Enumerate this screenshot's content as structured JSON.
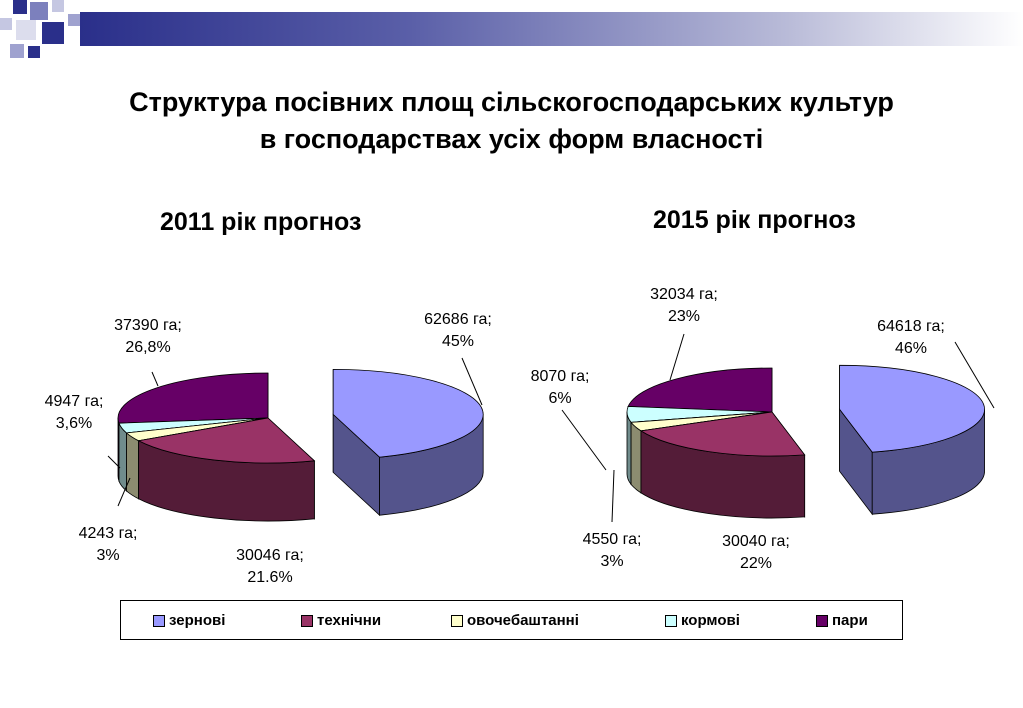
{
  "slide": {
    "title_line1": "Структура посівних площ сільскогосподарських культур",
    "title_line2": "в господарствах усіх форм власності"
  },
  "colors": {
    "зернові": "#9999ff",
    "технічни": "#993366",
    "овочебаштанні": "#ffffcc",
    "кормові": "#ccffff",
    "пари": "#660066"
  },
  "chart_data": [
    {
      "type": "pie",
      "title": "2011 рік прогноз",
      "categories": [
        "зернові",
        "технічни",
        "овочебаштанні",
        "кормові",
        "пари"
      ],
      "values": [
        62686,
        30046,
        4243,
        4947,
        37390
      ],
      "percent": [
        45,
        21.6,
        3,
        3.6,
        26.8
      ],
      "data_labels": [
        [
          "62686 га;",
          "45%"
        ],
        [
          "30046 га;",
          "21.6%"
        ],
        [
          "4243 га;",
          "3%"
        ],
        [
          "4947 га;",
          "3,6%"
        ],
        [
          "37390 га;",
          "26,8%"
        ]
      ],
      "exploded_category": "зернові",
      "style": "3d"
    },
    {
      "type": "pie",
      "title": "2015 рік прогноз",
      "categories": [
        "зернові",
        "технічни",
        "овочебаштанні",
        "кормові",
        "пари"
      ],
      "values": [
        64618,
        30040,
        4550,
        8070,
        32034
      ],
      "percent": [
        46,
        22,
        3,
        6,
        23
      ],
      "data_labels": [
        [
          "64618 га;",
          "46%"
        ],
        [
          "30040 га;",
          "22%"
        ],
        [
          "4550 га;",
          "3%"
        ],
        [
          "8070 га;",
          "6%"
        ],
        [
          "32034 га;",
          "23%"
        ]
      ],
      "exploded_category": "зернові",
      "style": "3d"
    }
  ],
  "legend": {
    "placement": "bottom",
    "items": [
      {
        "label": "зернові"
      },
      {
        "label": "технічни"
      },
      {
        "label": "овочебаштанні"
      },
      {
        "label": "кормові"
      },
      {
        "label": "пари"
      }
    ]
  }
}
